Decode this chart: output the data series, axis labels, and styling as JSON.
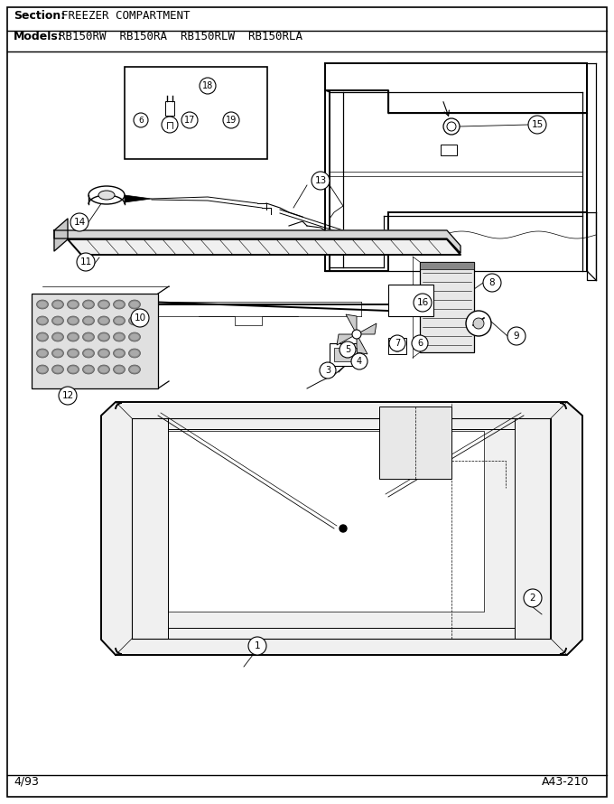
{
  "title_section_bold": "Section:",
  "title_section_normal": "  FREEZER COMPARTMENT",
  "title_models_bold": "Models:",
  "title_models_normal": "  RB150RW  RB150RA  RB150RLW  RB150RLA",
  "footer_left": "4/93",
  "footer_right": "A43-210",
  "bg_color": "#ffffff",
  "fig_width": 6.8,
  "fig_height": 8.9,
  "dpi": 100
}
